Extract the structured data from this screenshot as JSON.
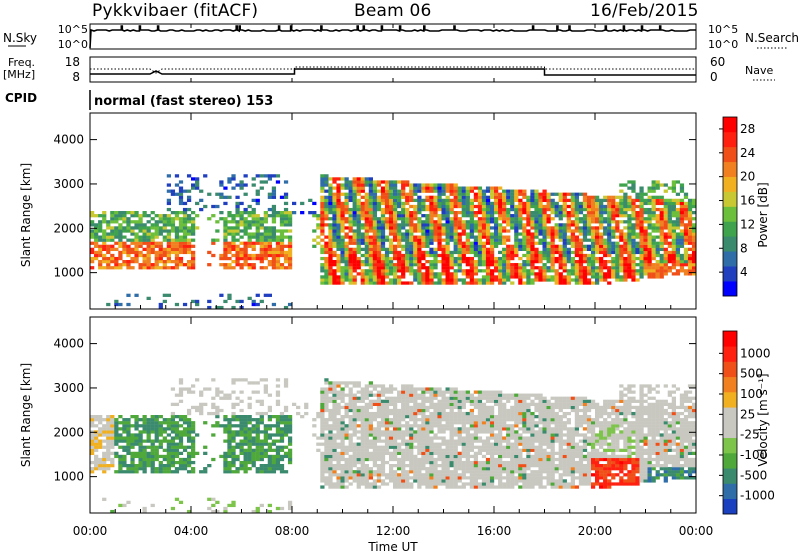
{
  "header": {
    "station": "Pykkvibaer (fitACF)",
    "beam": "Beam 06",
    "date": "16/Feb/2015"
  },
  "top_panels": {
    "nsky_label": "N.Sky",
    "nsky_ticks": [
      "10^5",
      "10^0"
    ],
    "nsearch_label": "N.Search",
    "nsearch_ticks": [
      "10^5",
      "10^0"
    ],
    "freq_label_1": "Freq.",
    "freq_label_2": "[MHz]",
    "freq_ticks": [
      "18",
      "8"
    ],
    "nave_label": "Nave",
    "nave_ticks": [
      "60",
      "0"
    ],
    "cpid_label": "CPID",
    "cpid_text": "normal (fast stereo) 153"
  },
  "chart_data": [
    {
      "type": "heatmap",
      "title": "",
      "xlabel": "Time UT",
      "ylabel": "Slant Range [km]",
      "x_ticks": [
        "00:00",
        "04:00",
        "08:00",
        "12:00",
        "16:00",
        "20:00",
        "00:00"
      ],
      "xlim_hours": [
        0,
        24
      ],
      "y_ticks": [
        "1000",
        "2000",
        "3000",
        "4000"
      ],
      "ylim_km": [
        180,
        4600
      ],
      "colorbar": {
        "label": "Power [dB]",
        "ticks": [
          "4",
          "8",
          "12",
          "16",
          "20",
          "24",
          "28"
        ],
        "range": [
          0,
          30
        ],
        "colors": [
          "#0000ff",
          "#1f3fbf",
          "#2e6da8",
          "#3a8a6e",
          "#3fa34d",
          "#6cbf3a",
          "#c8c832",
          "#f0b020",
          "#f08020",
          "#f05018",
          "#ff2010",
          "#ff0000"
        ]
      }
    },
    {
      "type": "heatmap",
      "title": "",
      "xlabel": "Time UT",
      "ylabel": "Slant Range [km]",
      "x_ticks": [
        "00:00",
        "04:00",
        "08:00",
        "12:00",
        "16:00",
        "20:00",
        "00:00"
      ],
      "xlim_hours": [
        0,
        24
      ],
      "y_ticks": [
        "1000",
        "2000",
        "3000",
        "4000"
      ],
      "ylim_km": [
        180,
        4600
      ],
      "colorbar": {
        "label": "Velocity [m s⁻¹]",
        "ticks": [
          "1000",
          "500",
          "100",
          "25",
          "-25",
          "-100",
          "-500",
          "-1000"
        ],
        "colors": [
          "#1a3fbf",
          "#2e6da8",
          "#3a8a6e",
          "#4fa83a",
          "#7cc44a",
          "#c8c8c0",
          "#c8c8c0",
          "#f0b020",
          "#f08020",
          "#f05018",
          "#ff2010",
          "#ff0000"
        ]
      }
    }
  ]
}
